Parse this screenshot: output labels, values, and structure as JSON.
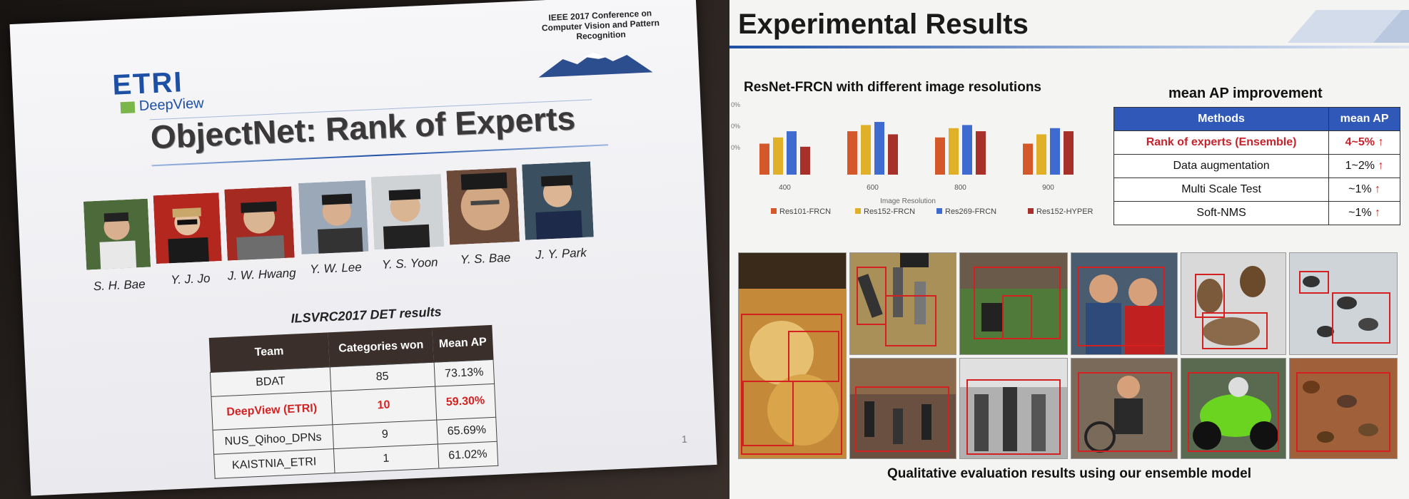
{
  "left_slide": {
    "logo_text": "ETRI",
    "logo_sub": "DeepView",
    "conference": "IEEE 2017 Conference on Computer Vision and Pattern Recognition",
    "title": "ObjectNet: Rank of Experts",
    "people": [
      "S. H. Bae",
      "Y. J. Jo",
      "J. W. Hwang",
      "Y. W. Lee",
      "Y. S. Yoon",
      "Y. S. Bae",
      "J. Y. Park"
    ],
    "results_title": "ILSVRC2017 DET results",
    "table": {
      "headers": [
        "Team",
        "Categories won",
        "Mean AP"
      ],
      "rows": [
        [
          "BDAT",
          "85",
          "73.13%"
        ],
        [
          "DeepView (ETRI)",
          "10",
          "59.30%"
        ],
        [
          "NUS_Qihoo_DPNs",
          "9",
          "65.69%"
        ],
        [
          "KAISTNIA_ETRI",
          "1",
          "61.02%"
        ]
      ]
    },
    "page_number": "1"
  },
  "right_slide": {
    "title": "Experimental Results",
    "chart_title": "ResNet-FRCN with different image resolutions",
    "ap_title": "mean AP improvement",
    "ap_table": {
      "headers": [
        "Methods",
        "mean AP"
      ],
      "rows": [
        [
          "Rank of experts (Ensemble)",
          "4~5%"
        ],
        [
          "Data augmentation",
          "1~2%"
        ],
        [
          "Multi Scale Test",
          "~1%"
        ],
        [
          "Soft-NMS",
          "~1%"
        ]
      ],
      "arrow": "↑"
    },
    "caption": "Qualitative evaluation results using our ensemble model"
  },
  "chart_data": {
    "type": "bar",
    "title": "ResNet-FRCN with different image resolutions",
    "xlabel": "Image Resolution",
    "ylabel": "",
    "categories": [
      "400",
      "600",
      "800",
      "900"
    ],
    "series": [
      {
        "name": "Res101-FRCN",
        "color": "#d4582a",
        "values": [
          55,
          59,
          57,
          55
        ]
      },
      {
        "name": "Res152-FRCN",
        "color": "#e0b028",
        "values": [
          57,
          61,
          60,
          58
        ]
      },
      {
        "name": "Res269-FRCN",
        "color": "#3f6ad0",
        "values": [
          59,
          62,
          61,
          60
        ]
      },
      {
        "name": "Res152-HYPER",
        "color": "#a8302a",
        "values": [
          54,
          58,
          59,
          59
        ]
      }
    ],
    "yticks": [
      "0%",
      "0%",
      "0%"
    ],
    "ylim": [
      45,
      65
    ],
    "legend": "bottom"
  }
}
